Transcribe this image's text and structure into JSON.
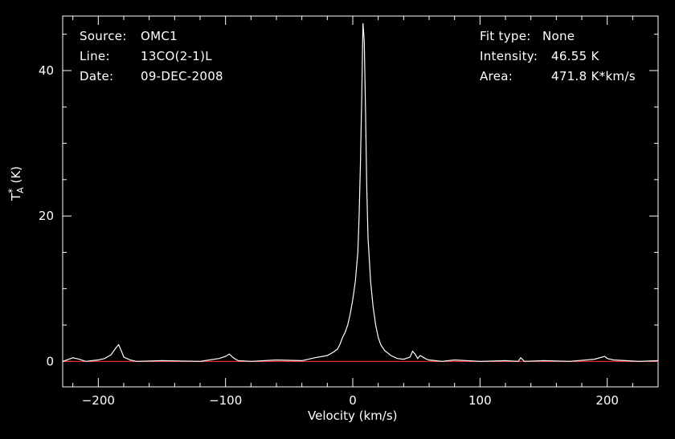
{
  "header": {
    "source_label": "Source:",
    "source_value": "OMC1",
    "line_label": "Line:",
    "line_value": "13CO(2-1)L",
    "date_label": "Date:",
    "date_value": "09-DEC-2008",
    "fit_type_label": "Fit type:",
    "fit_type_value": "None",
    "intensity_label": "Intensity:",
    "intensity_value": "46.55 K",
    "area_label": "Area:",
    "area_value": "471.8 K*km/s"
  },
  "chart_data": {
    "type": "line",
    "xlabel": "Velocity (km/s)",
    "ylabel_main": "T",
    "ylabel_sup": "*",
    "ylabel_sub": "A",
    "ylabel_unit": "(K)",
    "xlim": [
      -228,
      240
    ],
    "ylim": [
      -3.5,
      47.5
    ],
    "xticks": [
      -200,
      -100,
      0,
      100,
      200
    ],
    "yticks": [
      0,
      20,
      40
    ],
    "series": [
      {
        "color": "#ffffff",
        "x": [
          -228,
          -220,
          -215,
          -210,
          -205,
          -200,
          -195,
          -190,
          -186,
          -184,
          -182,
          -180,
          -175,
          -170,
          -150,
          -120,
          -105,
          -100,
          -97,
          -94,
          -90,
          -80,
          -60,
          -40,
          -30,
          -20,
          -15,
          -12,
          -10,
          -8,
          -6,
          -4,
          -2,
          0,
          2,
          4,
          5,
          6,
          7,
          8,
          9,
          10,
          11,
          12,
          14,
          16,
          18,
          20,
          22,
          25,
          30,
          35,
          40,
          45,
          47,
          49,
          51,
          53,
          56,
          58,
          60,
          65,
          70,
          80,
          100,
          120,
          130,
          132,
          135,
          150,
          170,
          190,
          198,
          200,
          205,
          215,
          225,
          240
        ],
        "y": [
          0.0,
          0.5,
          0.3,
          0.0,
          0.1,
          0.2,
          0.4,
          0.9,
          1.9,
          2.3,
          1.5,
          0.6,
          0.2,
          0.0,
          0.1,
          0.0,
          0.4,
          0.7,
          1.0,
          0.5,
          0.1,
          0.0,
          0.2,
          0.1,
          0.5,
          0.8,
          1.3,
          1.7,
          2.4,
          3.3,
          4.0,
          5.0,
          6.5,
          8.5,
          11.0,
          15.0,
          20.0,
          27.0,
          36.0,
          46.5,
          44.0,
          35.0,
          24.0,
          17.0,
          11.0,
          7.5,
          5.0,
          3.3,
          2.3,
          1.5,
          0.8,
          0.4,
          0.3,
          0.6,
          1.4,
          1.0,
          0.4,
          0.8,
          0.5,
          0.3,
          0.2,
          0.1,
          0.0,
          0.2,
          0.0,
          0.1,
          0.0,
          0.5,
          0.0,
          0.1,
          0.0,
          0.3,
          0.7,
          0.4,
          0.2,
          0.1,
          0.0,
          0.1
        ]
      },
      {
        "color": "#ff3030",
        "x": [
          -228,
          240
        ],
        "y": [
          0,
          0
        ]
      }
    ],
    "grid": false,
    "legend": "none"
  }
}
